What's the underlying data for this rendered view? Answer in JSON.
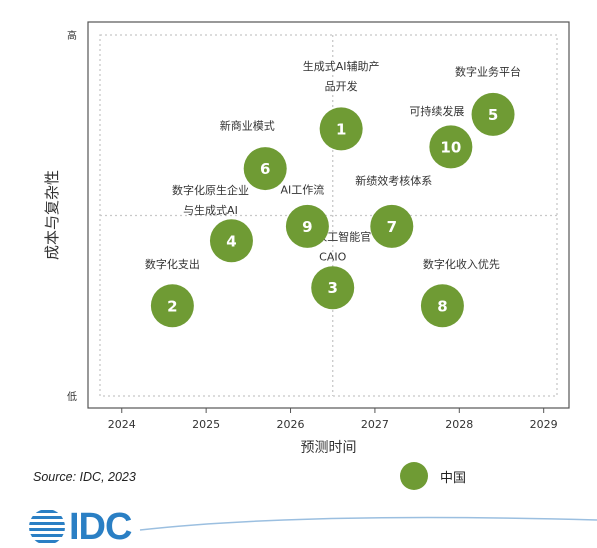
{
  "chart_data": {
    "type": "scatter",
    "xlabel": "预测时间",
    "ylabel": "成本与复杂性",
    "xlim": [
      2023.6,
      2029.3
    ],
    "ylim": [
      0,
      10
    ],
    "x_ticks": [
      "2024",
      "2025",
      "2026",
      "2027",
      "2028",
      "2029"
    ],
    "y_ticks": [
      {
        "label": "低",
        "value": 0
      },
      {
        "label": "高",
        "value": 10
      }
    ],
    "grid": "dotted, midlines at 2026.5 and 5",
    "series": [
      {
        "name": "中国",
        "color": "#6f9b34",
        "points": [
          {
            "id": "1",
            "x": 2026.6,
            "y": 7.4,
            "label": "生成式AI辅助产品开发"
          },
          {
            "id": "2",
            "x": 2024.6,
            "y": 2.5,
            "label": "数字化支出"
          },
          {
            "id": "3",
            "x": 2026.5,
            "y": 3.0,
            "label": "首席人工智能官CAIO"
          },
          {
            "id": "4",
            "x": 2025.3,
            "y": 4.3,
            "label": "数字化原生企业与生成式AI"
          },
          {
            "id": "5",
            "x": 2028.4,
            "y": 7.8,
            "label": "数字业务平台"
          },
          {
            "id": "6",
            "x": 2025.7,
            "y": 6.3,
            "label": "新商业模式"
          },
          {
            "id": "7",
            "x": 2027.2,
            "y": 4.7,
            "label": "新绩效考核体系"
          },
          {
            "id": "8",
            "x": 2027.8,
            "y": 2.5,
            "label": "数字化收入优先"
          },
          {
            "id": "9",
            "x": 2026.2,
            "y": 4.7,
            "label": "AI工作流"
          },
          {
            "id": "10",
            "x": 2027.9,
            "y": 6.9,
            "label": "可持续发展"
          }
        ]
      }
    ]
  },
  "labels": {
    "1": [
      "生成式AI辅助产",
      "品开发"
    ],
    "2": [
      "数字化支出"
    ],
    "3": [
      "首席人工智能官",
      "CAIO"
    ],
    "4": [
      "数字化原生企业",
      "与生成式AI"
    ],
    "5": [
      "数字业务平台"
    ],
    "6": [
      "新商业模式"
    ],
    "7": [
      "新绩效考核体系"
    ],
    "8": [
      "数字化收入优先"
    ],
    "9": [
      "AI工作流"
    ],
    "10": [
      "可持续发展"
    ]
  },
  "source": "Source: IDC, 2023",
  "legend": {
    "label": "中国"
  },
  "logo": {
    "text": "IDC"
  },
  "colors": {
    "bubble": "#6f9b34",
    "logo": "#2a7fc4",
    "frame": "#555555",
    "grid": "#c8c8c8"
  }
}
